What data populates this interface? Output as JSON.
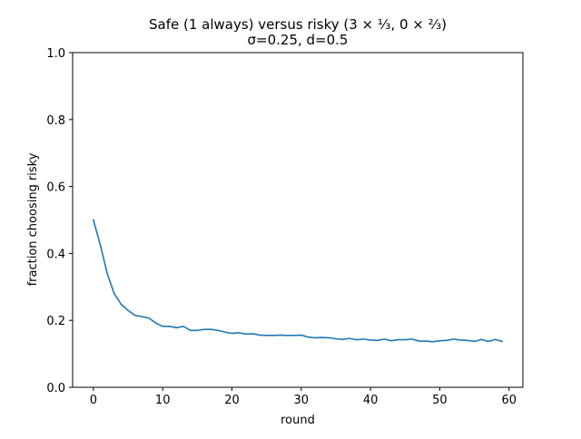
{
  "chart_data": {
    "type": "line",
    "title": "Safe (1 always) versus risky (3 × ⅓, 0 × ⅔)",
    "subtitle": "σ=0.25, d=0.5",
    "xlabel": "round",
    "ylabel": "fraction choosing risky",
    "xlim": [
      -3,
      62
    ],
    "ylim": [
      0.0,
      1.0
    ],
    "xticks": [
      "0",
      "10",
      "20",
      "30",
      "40",
      "50",
      "60"
    ],
    "yticks": [
      "0.0",
      "0.2",
      "0.4",
      "0.6",
      "0.8",
      "1.0"
    ],
    "grid": false,
    "legend": "none",
    "line_color": "#1f77b4",
    "series": [
      {
        "x": [
          0,
          1,
          2,
          3,
          4,
          5,
          6,
          7,
          8,
          9,
          10,
          11,
          12,
          13,
          14,
          15,
          16,
          17,
          18,
          19,
          20,
          21,
          22,
          23,
          24,
          25,
          26,
          27,
          28,
          29,
          30,
          31,
          32,
          33,
          34,
          35,
          36,
          37,
          38,
          39,
          40,
          41,
          42,
          43,
          44,
          45,
          46,
          47,
          48,
          49,
          50,
          51,
          52,
          53,
          54,
          55,
          56,
          57,
          58,
          59
        ],
        "values": [
          0.5,
          0.425,
          0.34,
          0.28,
          0.248,
          0.23,
          0.215,
          0.211,
          0.207,
          0.192,
          0.182,
          0.182,
          0.178,
          0.182,
          0.17,
          0.17,
          0.173,
          0.173,
          0.17,
          0.165,
          0.161,
          0.163,
          0.159,
          0.16,
          0.156,
          0.155,
          0.155,
          0.156,
          0.155,
          0.155,
          0.156,
          0.15,
          0.148,
          0.149,
          0.148,
          0.145,
          0.143,
          0.146,
          0.142,
          0.144,
          0.141,
          0.14,
          0.144,
          0.139,
          0.142,
          0.142,
          0.144,
          0.138,
          0.138,
          0.136,
          0.139,
          0.14,
          0.144,
          0.141,
          0.14,
          0.137,
          0.143,
          0.137,
          0.143,
          0.137
        ]
      }
    ]
  }
}
